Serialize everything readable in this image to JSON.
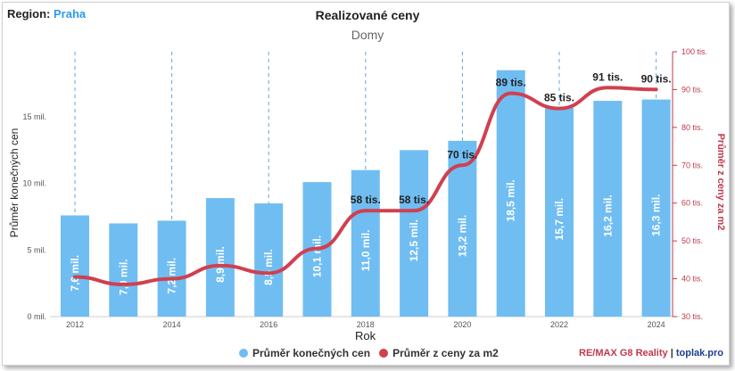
{
  "region_label": "Region:",
  "region_value": "Praha",
  "chart_data": {
    "type": "bar+line",
    "title": "Realizované ceny",
    "subtitle": "Domy",
    "xlabel": "Rok",
    "ylabel_left": "Průměr konečných cen",
    "ylabel_right": "Průměr z ceny za m2",
    "x": [
      2012,
      2013,
      2014,
      2015,
      2016,
      2017,
      2018,
      2019,
      2020,
      2021,
      2022,
      2023,
      2024
    ],
    "x_tick_labels": [
      "2012",
      "2014",
      "2016",
      "2018",
      "2020",
      "2022",
      "2024"
    ],
    "y_left_ticks": [
      "0 mil.",
      "5 mil.",
      "10 mil.",
      "15 mil."
    ],
    "y_left_range": [
      0,
      19
    ],
    "y_right_ticks": [
      "30 tis.",
      "40 tis.",
      "50 tis.",
      "60 tis.",
      "70 tis.",
      "80 tis.",
      "90 tis.",
      "100 tis."
    ],
    "y_right_range": [
      30,
      100
    ],
    "series": [
      {
        "name": "Průměr konečných cen",
        "kind": "bar",
        "color": "#70bdf2",
        "values": [
          7.6,
          7.0,
          7.2,
          8.9,
          8.5,
          10.1,
          11.0,
          12.5,
          13.2,
          18.5,
          15.7,
          16.2,
          16.3
        ],
        "labels": [
          "7,6 mil.",
          "7,0 mil.",
          "7,2 mil.",
          "8,9 mil.",
          "8,5 mil.",
          "10,1 mil.",
          "11,0 mil.",
          "12,5 mil.",
          "13,2 mil.",
          "18,5 mil.",
          "15,7 mil.",
          "16,2 mil.",
          "16,3 mil."
        ]
      },
      {
        "name": "Průměr z ceny za m2",
        "kind": "line",
        "color": "#d0404f",
        "values": [
          40.5,
          38.5,
          40.0,
          43.5,
          41.5,
          48.0,
          58.0,
          58.0,
          70.0,
          89.0,
          85.0,
          90.5,
          90.0
        ],
        "labels": [
          "",
          "",
          "",
          "",
          "",
          "",
          "58 tis.",
          "58 tis.",
          "70 tis.",
          "89 tis.",
          "85 tis.",
          "91 tis.",
          "90 tis."
        ]
      }
    ],
    "legend_position": "bottom"
  },
  "brand_remax": "RE/MAX G8 Reality",
  "brand_separator": "|",
  "brand_toplak": "toplak.pro"
}
